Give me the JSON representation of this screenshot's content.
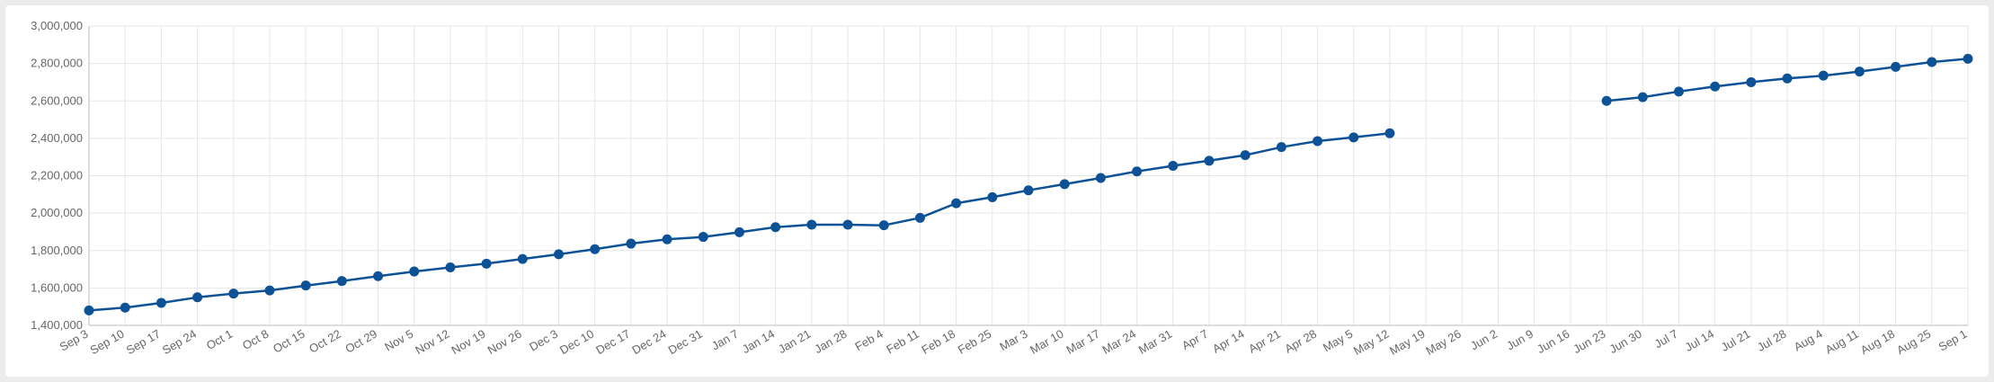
{
  "chart_data": {
    "type": "line",
    "title": "",
    "xlabel": "",
    "ylabel": "",
    "ylim": [
      1400000,
      3000000
    ],
    "yticks": [
      "1,400,000",
      "1,600,000",
      "1,800,000",
      "2,000,000",
      "2,200,000",
      "2,400,000",
      "2,600,000",
      "2,800,000",
      "3,000,000"
    ],
    "ytick_values": [
      1400000,
      1600000,
      1800000,
      2000000,
      2200000,
      2400000,
      2600000,
      2800000,
      3000000
    ],
    "grid": true,
    "legend": "none",
    "color": "#0d5296",
    "categories": [
      "Sep 3",
      "Sep 10",
      "Sep 17",
      "Sep 24",
      "Oct 1",
      "Oct 8",
      "Oct 15",
      "Oct 22",
      "Oct 29",
      "Nov 5",
      "Nov 12",
      "Nov 19",
      "Nov 26",
      "Dec 3",
      "Dec 10",
      "Dec 17",
      "Dec 24",
      "Dec 31",
      "Jan 7",
      "Jan 14",
      "Jan 21",
      "Jan 28",
      "Feb 4",
      "Feb 11",
      "Feb 18",
      "Feb 25",
      "Mar 3",
      "Mar 10",
      "Mar 17",
      "Mar 24",
      "Mar 31",
      "Apr 7",
      "Apr 14",
      "Apr 21",
      "Apr 28",
      "May 5",
      "May 12",
      "May 19",
      "May 26",
      "Jun 2",
      "Jun 9",
      "Jun 16",
      "Jun 23",
      "Jun 30",
      "Jul 7",
      "Jul 14",
      "Jul 21",
      "Jul 28",
      "Aug 4",
      "Aug 11",
      "Aug 18",
      "Aug 25",
      "Sep 1"
    ],
    "series": [
      {
        "values": [
          1480000,
          1495000,
          1520000,
          1550000,
          1570000,
          1587000,
          1613000,
          1637000,
          1663000,
          1688000,
          1710000,
          1730000,
          1755000,
          1780000,
          1807000,
          1837000,
          1860000,
          1873000,
          1898000,
          1925000,
          1938000,
          1938000,
          1935000,
          1975000,
          2053000,
          2085000,
          2122000,
          2155000,
          2188000,
          2223000,
          2253000,
          2280000,
          2310000,
          2353000,
          2385000,
          2405000,
          2427000,
          null,
          null,
          null,
          null,
          null,
          2600000,
          2620000,
          2650000,
          2677000,
          2700000,
          2720000,
          2735000,
          2757000,
          2782000,
          2808000,
          2825000
        ]
      }
    ]
  }
}
